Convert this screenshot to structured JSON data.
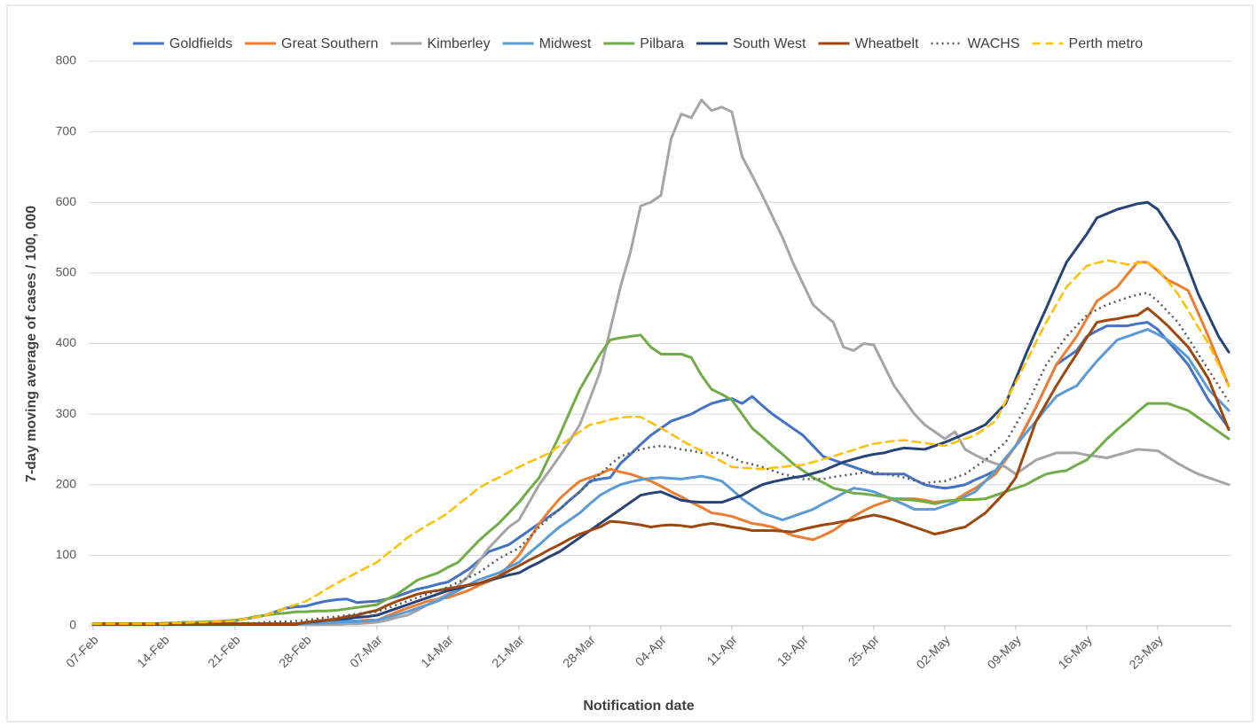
{
  "chart_data": {
    "type": "line",
    "y_label": "7-day moving average of cases / 100, 000",
    "x_label": "Notification date",
    "ylim": [
      0,
      800
    ],
    "yticks": [
      0,
      100,
      200,
      300,
      400,
      500,
      600,
      700,
      800
    ],
    "grid": true,
    "legend": "top",
    "categories": [
      "07-Feb",
      null,
      null,
      null,
      null,
      null,
      null,
      "14-Feb",
      null,
      null,
      null,
      null,
      null,
      null,
      "21-Feb",
      null,
      null,
      null,
      null,
      null,
      null,
      "28-Feb",
      null,
      null,
      null,
      null,
      null,
      null,
      "07-Mar",
      null,
      null,
      null,
      null,
      null,
      null,
      "14-Mar",
      null,
      null,
      null,
      null,
      null,
      null,
      "21-Mar",
      null,
      null,
      null,
      null,
      null,
      null,
      "28-Mar",
      null,
      null,
      null,
      null,
      null,
      null,
      "04-Apr",
      null,
      null,
      null,
      null,
      null,
      null,
      "11-Apr",
      null,
      null,
      null,
      null,
      null,
      null,
      "18-Apr",
      null,
      null,
      null,
      null,
      null,
      null,
      "25-Apr",
      null,
      null,
      null,
      null,
      null,
      null,
      "02-May",
      null,
      null,
      null,
      null,
      null,
      null,
      "09-May",
      null,
      null,
      null,
      null,
      null,
      null,
      "16-May",
      null,
      null,
      null,
      null,
      null,
      null,
      "23-May",
      null,
      null,
      null,
      null,
      null,
      null,
      null
    ],
    "series": [
      {
        "name": "Goldfields",
        "color": "#4472c4",
        "style": "solid",
        "values": [
          3,
          3,
          3,
          3,
          3,
          3,
          3,
          3,
          3,
          3,
          3,
          4,
          5,
          6,
          7,
          10,
          12,
          15,
          20,
          25,
          27,
          28,
          32,
          35,
          37,
          38,
          33,
          34,
          35,
          38,
          42,
          47,
          52,
          55,
          59,
          62,
          71,
          80,
          92,
          105,
          110,
          115,
          125,
          135,
          145,
          155,
          165,
          178,
          190,
          205,
          208,
          210,
          230,
          243,
          257,
          270,
          280,
          290,
          295,
          300,
          308,
          315,
          319,
          322,
          315,
          325,
          312,
          300,
          290,
          280,
          270,
          255,
          240,
          235,
          230,
          225,
          220,
          215,
          215,
          215,
          215,
          207,
          200,
          197,
          195,
          197,
          200,
          207,
          213,
          220,
          237,
          255,
          282,
          310,
          340,
          370,
          380,
          390,
          410,
          418,
          425,
          425,
          425,
          428,
          430,
          420,
          403,
          387,
          370,
          345,
          320,
          300,
          280
        ]
      },
      {
        "name": "Great Southern",
        "color": "#ed7d31",
        "style": "solid",
        "values": [
          3,
          3,
          3,
          3,
          3,
          3,
          3,
          3,
          3,
          3,
          3,
          3,
          3,
          3,
          3,
          3,
          3,
          3,
          3,
          3,
          3,
          5,
          5,
          6,
          6,
          7,
          7,
          8,
          8,
          14,
          20,
          25,
          30,
          35,
          38,
          40,
          45,
          50,
          57,
          63,
          70,
          85,
          100,
          122,
          145,
          163,
          180,
          193,
          205,
          210,
          215,
          222,
          218,
          215,
          210,
          205,
          198,
          190,
          183,
          175,
          168,
          160,
          158,
          155,
          150,
          145,
          143,
          140,
          134,
          128,
          125,
          122,
          128,
          135,
          145,
          155,
          163,
          170,
          175,
          180,
          180,
          180,
          178,
          175,
          177,
          178,
          187,
          195,
          205,
          215,
          235,
          255,
          283,
          310,
          340,
          370,
          390,
          410,
          435,
          460,
          470,
          480,
          498,
          515,
          515,
          503,
          490,
          483,
          475,
          443,
          410,
          375,
          340
        ]
      },
      {
        "name": "Kimberley",
        "color": "#a5a5a5",
        "style": "solid",
        "values": [
          2,
          2,
          2,
          2,
          2,
          2,
          2,
          2,
          2,
          2,
          2,
          2,
          2,
          2,
          2,
          2,
          2,
          2,
          2,
          2,
          2,
          2,
          2,
          2,
          2,
          3,
          3,
          4,
          5,
          8,
          12,
          15,
          22,
          30,
          38,
          45,
          57,
          70,
          90,
          110,
          125,
          140,
          150,
          175,
          200,
          220,
          240,
          262,
          285,
          322,
          360,
          420,
          480,
          530,
          595,
          600,
          610,
          690,
          725,
          720,
          745,
          730,
          735,
          728,
          665,
          638,
          610,
          580,
          550,
          515,
          485,
          455,
          442,
          430,
          395,
          390,
          400,
          398,
          369,
          340,
          320,
          300,
          285,
          275,
          265,
          275,
          250,
          242,
          235,
          230,
          225,
          215,
          225,
          235,
          240,
          245,
          245,
          245,
          242,
          240,
          238,
          242,
          246,
          250,
          249,
          248,
          239,
          230,
          222,
          215,
          210,
          205,
          200
        ]
      },
      {
        "name": "Midwest",
        "color": "#5b9bd5",
        "style": "solid",
        "values": [
          3,
          3,
          3,
          3,
          3,
          3,
          3,
          3,
          3,
          3,
          3,
          3,
          3,
          3,
          3,
          3,
          3,
          3,
          3,
          3,
          3,
          3,
          4,
          4,
          5,
          6,
          6,
          7,
          8,
          12,
          16,
          20,
          25,
          30,
          35,
          43,
          50,
          58,
          65,
          70,
          75,
          83,
          90,
          103,
          115,
          128,
          140,
          150,
          160,
          173,
          185,
          193,
          200,
          204,
          207,
          209,
          210,
          209,
          208,
          210,
          212,
          209,
          205,
          193,
          180,
          170,
          160,
          155,
          150,
          155,
          160,
          165,
          173,
          180,
          188,
          195,
          193,
          190,
          184,
          178,
          172,
          165,
          165,
          165,
          170,
          175,
          183,
          190,
          205,
          220,
          238,
          255,
          273,
          290,
          308,
          325,
          333,
          340,
          358,
          375,
          390,
          405,
          410,
          415,
          420,
          413,
          405,
          393,
          380,
          358,
          335,
          320,
          305
        ]
      },
      {
        "name": "Pilbara",
        "color": "#70ad47",
        "style": "solid",
        "values": [
          3,
          3,
          3,
          3,
          3,
          3,
          3,
          4,
          4,
          5,
          5,
          6,
          6,
          7,
          8,
          10,
          13,
          15,
          17,
          18,
          20,
          20,
          21,
          21,
          22,
          24,
          26,
          28,
          30,
          38,
          45,
          55,
          65,
          70,
          75,
          83,
          90,
          105,
          120,
          133,
          145,
          160,
          175,
          193,
          210,
          240,
          270,
          303,
          335,
          360,
          385,
          405,
          408,
          410,
          412,
          395,
          385,
          385,
          385,
          380,
          355,
          335,
          328,
          320,
          300,
          280,
          268,
          255,
          243,
          230,
          220,
          210,
          203,
          195,
          192,
          188,
          187,
          185,
          183,
          180,
          179,
          178,
          176,
          173,
          176,
          178,
          179,
          179,
          180,
          185,
          190,
          195,
          200,
          208,
          215,
          218,
          220,
          228,
          235,
          250,
          265,
          278,
          290,
          303,
          315,
          315,
          315,
          310,
          305,
          295,
          285,
          275,
          265
        ]
      },
      {
        "name": "South West",
        "color": "#264478",
        "style": "solid",
        "values": [
          2,
          2,
          2,
          2,
          2,
          2,
          2,
          2,
          2,
          2,
          2,
          2,
          2,
          2,
          2,
          2,
          2,
          2,
          2,
          2,
          2,
          5,
          6,
          8,
          9,
          10,
          12,
          13,
          15,
          20,
          25,
          30,
          35,
          40,
          45,
          50,
          53,
          57,
          60,
          64,
          68,
          72,
          75,
          83,
          90,
          98,
          105,
          115,
          125,
          135,
          145,
          155,
          165,
          175,
          185,
          188,
          190,
          184,
          178,
          176,
          175,
          175,
          175,
          180,
          185,
          193,
          200,
          204,
          207,
          210,
          212,
          216,
          220,
          226,
          232,
          236,
          240,
          243,
          245,
          249,
          252,
          251,
          250,
          255,
          260,
          266,
          272,
          278,
          285,
          300,
          315,
          350,
          385,
          418,
          450,
          483,
          515,
          535,
          555,
          578,
          584,
          590,
          594,
          598,
          600,
          590,
          568,
          545,
          508,
          470,
          440,
          410,
          388
        ]
      },
      {
        "name": "Wheatbelt",
        "color": "#9e480e",
        "style": "solid",
        "values": [
          3,
          3,
          3,
          3,
          3,
          3,
          3,
          3,
          3,
          3,
          3,
          3,
          3,
          3,
          3,
          3,
          3,
          3,
          3,
          3,
          3,
          5,
          7,
          8,
          10,
          13,
          15,
          19,
          22,
          29,
          35,
          40,
          45,
          48,
          50,
          53,
          55,
          58,
          60,
          65,
          70,
          78,
          85,
          93,
          100,
          108,
          115,
          123,
          130,
          135,
          140,
          148,
          147,
          145,
          143,
          140,
          142,
          143,
          142,
          140,
          143,
          145,
          143,
          140,
          138,
          135,
          135,
          135,
          134,
          133,
          137,
          140,
          143,
          145,
          148,
          150,
          154,
          157,
          154,
          150,
          145,
          140,
          135,
          130,
          133,
          137,
          140,
          150,
          160,
          175,
          190,
          210,
          250,
          290,
          315,
          340,
          363,
          385,
          408,
          430,
          433,
          435,
          438,
          440,
          450,
          438,
          425,
          410,
          395,
          373,
          350,
          314,
          278
        ]
      },
      {
        "name": "WACHS",
        "color": "#595959",
        "style": "dotted",
        "values": [
          3,
          3,
          3,
          3,
          3,
          3,
          3,
          3,
          3,
          3,
          3,
          3,
          3,
          3,
          3,
          4,
          4,
          5,
          6,
          6,
          7,
          8,
          10,
          12,
          13,
          15,
          17,
          18,
          20,
          25,
          30,
          35,
          40,
          45,
          50,
          55,
          62,
          68,
          75,
          85,
          95,
          103,
          110,
          125,
          140,
          153,
          165,
          178,
          190,
          203,
          215,
          228,
          240,
          245,
          250,
          253,
          255,
          253,
          250,
          248,
          245,
          245,
          245,
          239,
          232,
          229,
          225,
          220,
          215,
          212,
          208,
          208,
          208,
          211,
          213,
          215,
          217,
          218,
          215,
          213,
          210,
          206,
          202,
          204,
          205,
          210,
          215,
          225,
          235,
          248,
          260,
          285,
          310,
          340,
          370,
          390,
          410,
          425,
          440,
          448,
          455,
          460,
          465,
          469,
          472,
          460,
          445,
          430,
          408,
          385,
          363,
          340,
          318
        ]
      },
      {
        "name": "Perth metro",
        "color": "#ffc000",
        "style": "dashed",
        "values": [
          3,
          3,
          3,
          3,
          3,
          3,
          3,
          3,
          4,
          4,
          5,
          5,
          6,
          6,
          7,
          10,
          12,
          15,
          20,
          25,
          30,
          35,
          43,
          52,
          60,
          68,
          75,
          83,
          90,
          102,
          113,
          125,
          134,
          143,
          151,
          160,
          172,
          183,
          195,
          203,
          210,
          218,
          225,
          232,
          238,
          245,
          255,
          265,
          275,
          285,
          288,
          292,
          295,
          296,
          296,
          288,
          280,
          272,
          263,
          255,
          248,
          240,
          233,
          225,
          224,
          223,
          222,
          224,
          225,
          227,
          228,
          232,
          236,
          240,
          245,
          249,
          254,
          258,
          260,
          262,
          263,
          261,
          259,
          257,
          255,
          260,
          265,
          270,
          280,
          290,
          318,
          345,
          373,
          402,
          430,
          455,
          480,
          495,
          510,
          514,
          518,
          515,
          512,
          514,
          515,
          505,
          488,
          470,
          447,
          423,
          400,
          370,
          340
        ]
      }
    ]
  }
}
